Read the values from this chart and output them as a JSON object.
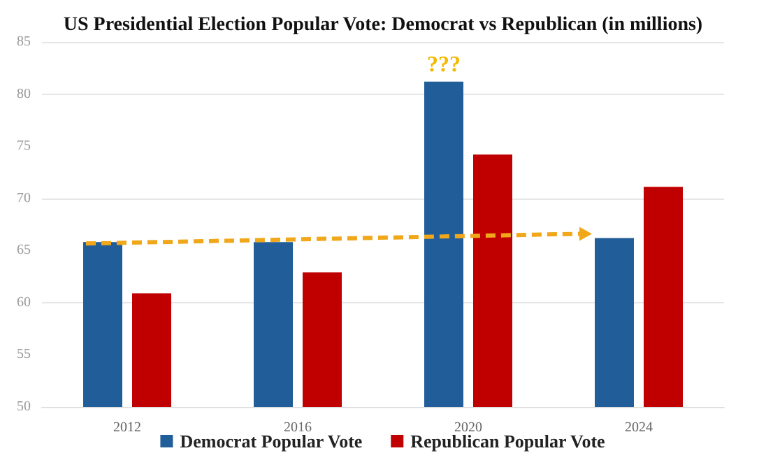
{
  "chart_data": {
    "type": "bar",
    "title": "US Presidential Election Popular Vote: Democrat vs Republican (in millions)",
    "categories": [
      "2012",
      "2016",
      "2020",
      "2024"
    ],
    "series": [
      {
        "name": "Democrat Popular Vote",
        "color": "#215e99",
        "values": [
          65.8,
          65.8,
          81.2,
          66.2
        ]
      },
      {
        "name": "Republican Popular Vote",
        "color": "#c00000",
        "values": [
          60.9,
          62.9,
          74.2,
          71.1
        ]
      }
    ],
    "ylim": [
      50,
      85
    ],
    "yticks": [
      50,
      55,
      60,
      65,
      70,
      75,
      80,
      85
    ],
    "grid": "y",
    "legend": "bottom",
    "annotations": [
      {
        "text": "???",
        "x": "2020",
        "y": 81.2
      }
    ]
  }
}
